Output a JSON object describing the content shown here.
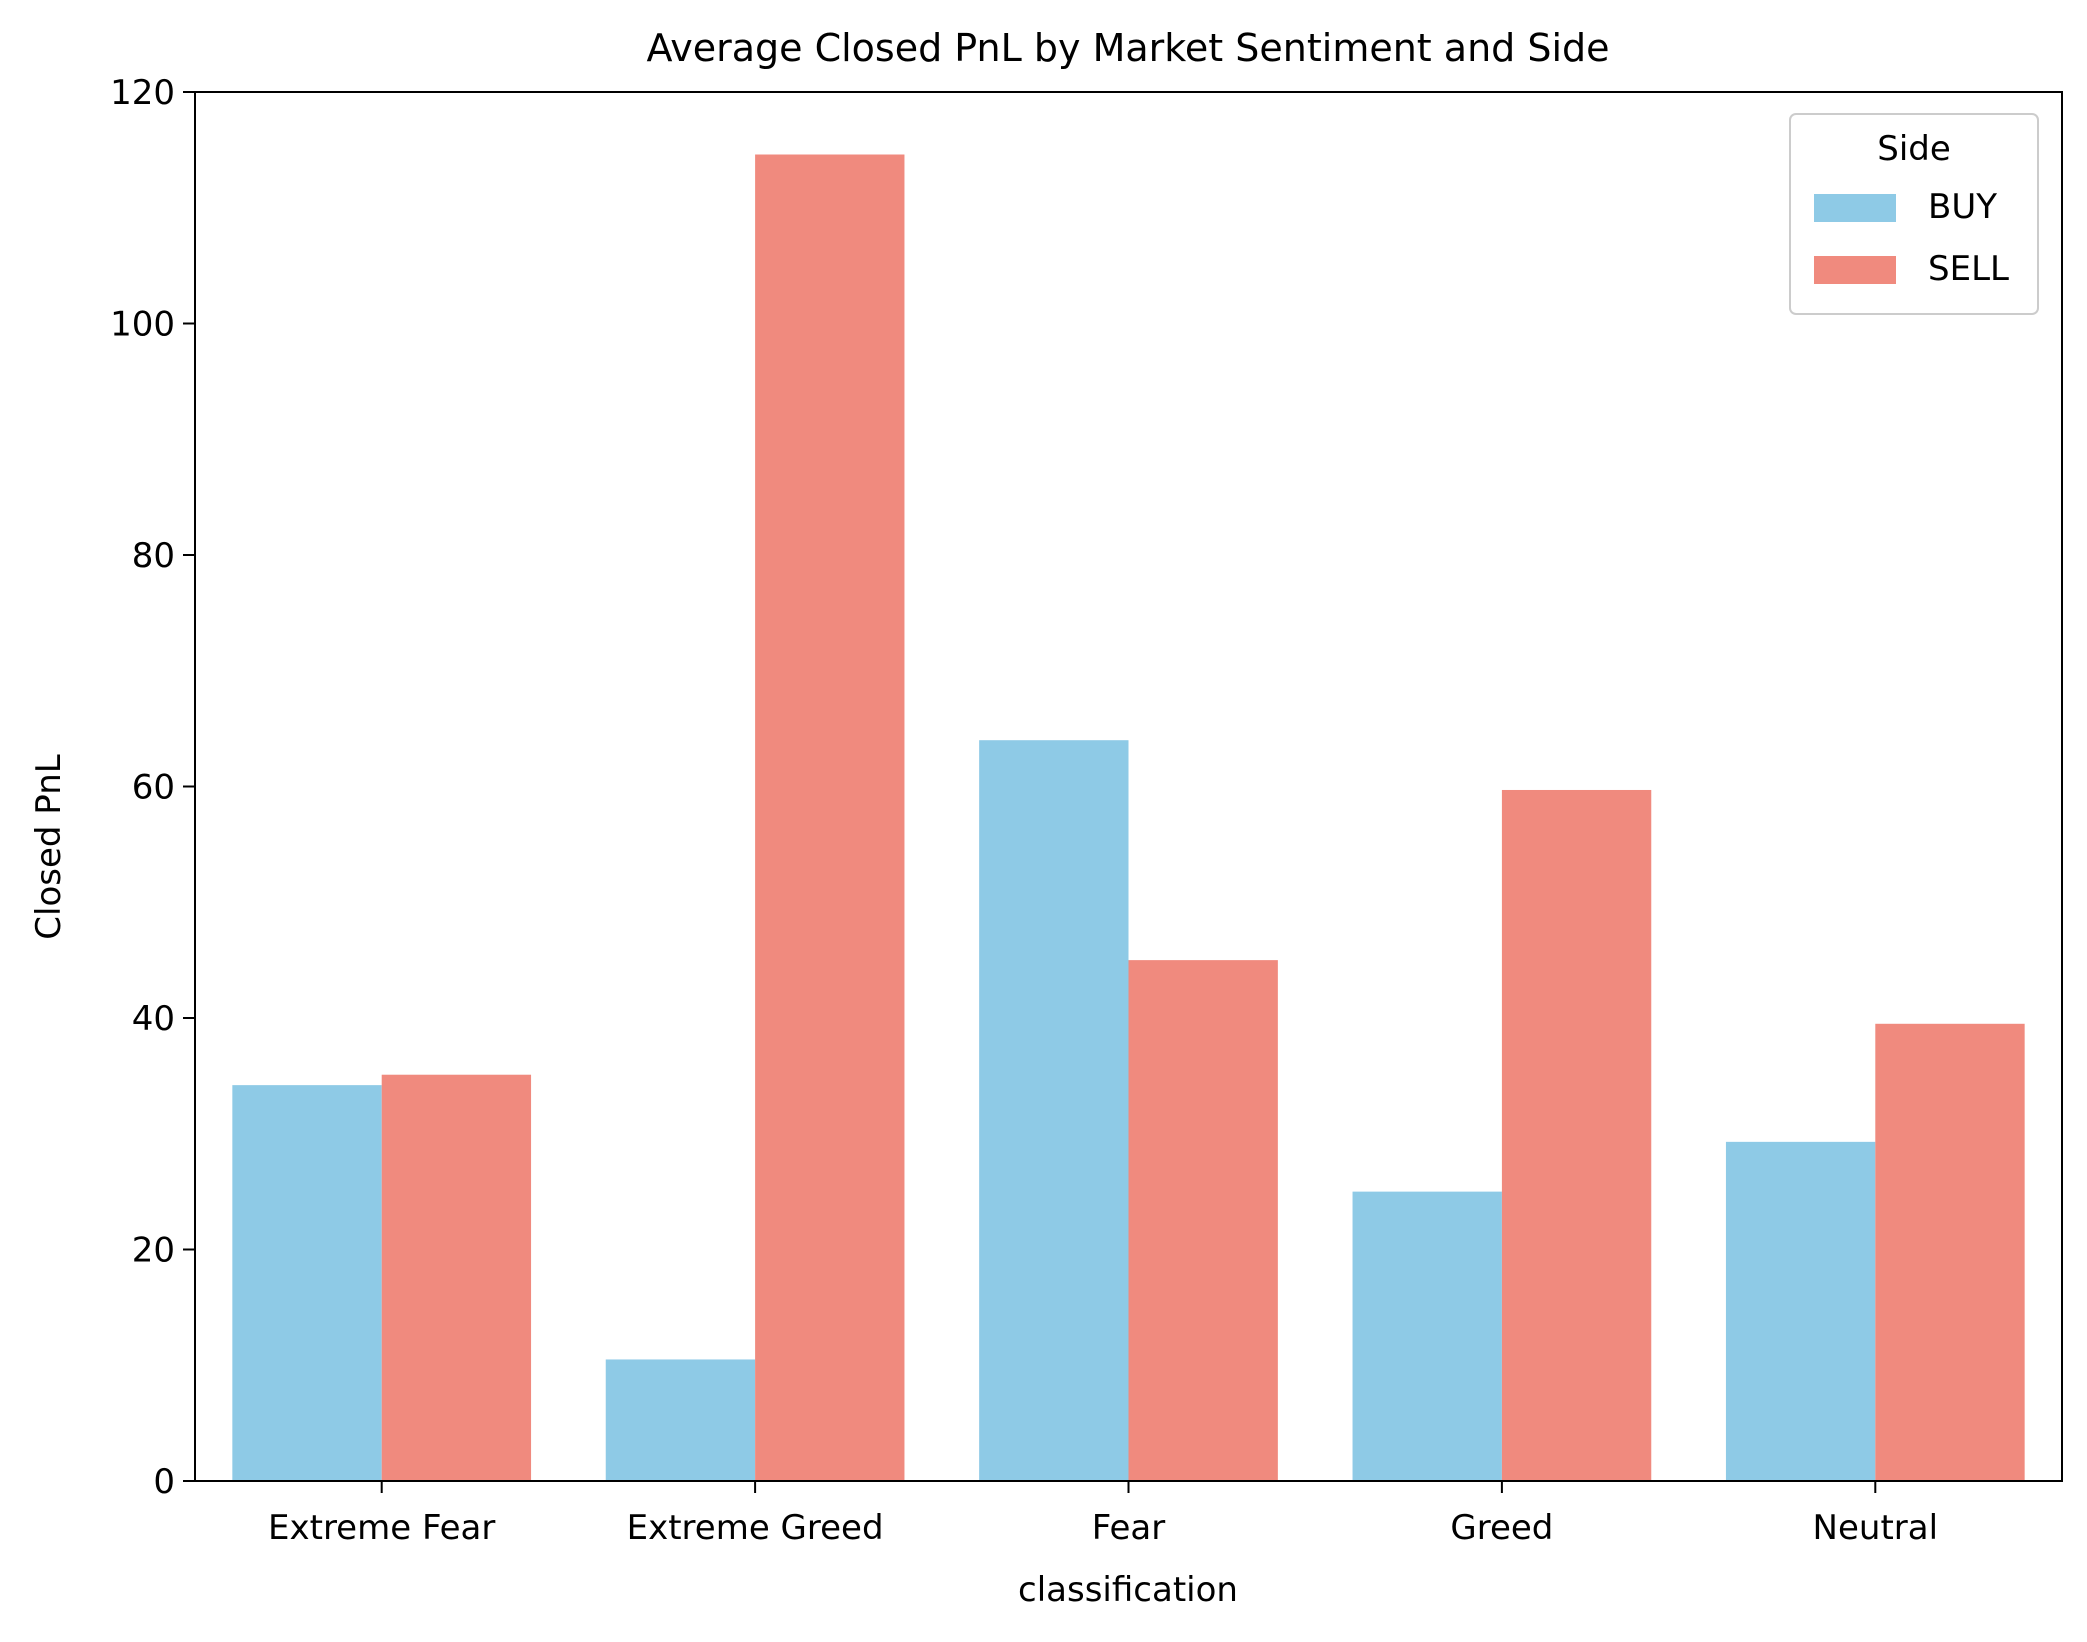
{
  "chart_data": {
    "type": "bar",
    "title": "Average Closed PnL by Market Sentiment and Side",
    "xlabel": "classification",
    "ylabel": "Closed PnL",
    "categories": [
      "Extreme Fear",
      "Extreme Greed",
      "Fear",
      "Greed",
      "Neutral"
    ],
    "series": [
      {
        "name": "BUY",
        "color": "#8ecae6",
        "values": [
          34.2,
          10.5,
          64.0,
          25.0,
          29.3
        ]
      },
      {
        "name": "SELL",
        "color": "#f08a7e",
        "values": [
          35.1,
          114.6,
          45.0,
          59.7,
          39.5
        ]
      }
    ],
    "ylim": [
      0,
      120
    ],
    "yticks": [
      0,
      20,
      40,
      60,
      80,
      100,
      120
    ],
    "grid": false,
    "legend": {
      "title": "Side",
      "placement": "top-right",
      "entries": [
        "BUY",
        "SELL"
      ]
    }
  }
}
